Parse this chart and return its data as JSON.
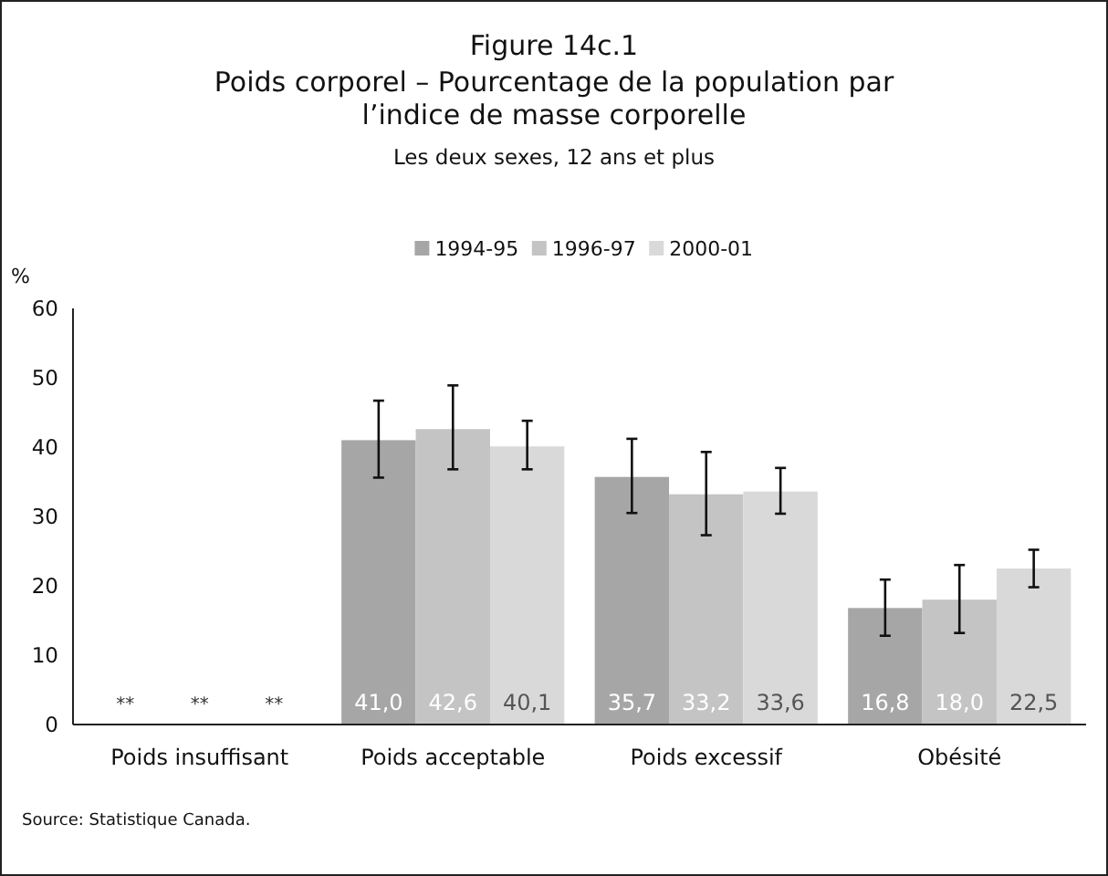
{
  "chart_data": {
    "type": "bar",
    "title": "Poids corporel – Pourcentage de la population par l’indice de masse corporelle",
    "subtitle": "Les deux sexes, 12 ans et plus",
    "ylabel": "%",
    "categories": [
      "Poids insuffisant",
      "Poids acceptable",
      "Poids excessif",
      "Obésité"
    ],
    "series": [
      {
        "name": "1994-95",
        "color": "#a6a6a6",
        "values": [
          null,
          41.0,
          35.7,
          16.8
        ],
        "value_labels": [
          "**",
          "41,0",
          "35,7",
          "16,8"
        ],
        "errors": [
          null,
          [
            35.6,
            46.7
          ],
          [
            30.5,
            41.2
          ],
          [
            12.8,
            20.9
          ]
        ]
      },
      {
        "name": "1996-97",
        "color": "#c4c4c4",
        "values": [
          null,
          42.6,
          33.2,
          18.0
        ],
        "value_labels": [
          "**",
          "42,6",
          "33,2",
          "18,0"
        ],
        "errors": [
          null,
          [
            36.8,
            48.9
          ],
          [
            27.3,
            39.3
          ],
          [
            13.2,
            23.0
          ]
        ]
      },
      {
        "name": "2000-01",
        "color": "#d9d9d9",
        "values": [
          null,
          40.1,
          33.6,
          22.5
        ],
        "value_labels": [
          "**",
          "40,1",
          "33,6",
          "22,5"
        ],
        "errors": [
          null,
          [
            36.8,
            43.8
          ],
          [
            30.4,
            37.0
          ],
          [
            19.8,
            25.2
          ]
        ]
      }
    ],
    "ylim": [
      0,
      60
    ],
    "yticks": [
      0,
      10,
      20,
      30,
      40,
      50,
      60
    ],
    "grid": false,
    "legend": "top",
    "annotations": [
      "Figure 14c.1",
      "Source: Statistique Canada."
    ]
  }
}
